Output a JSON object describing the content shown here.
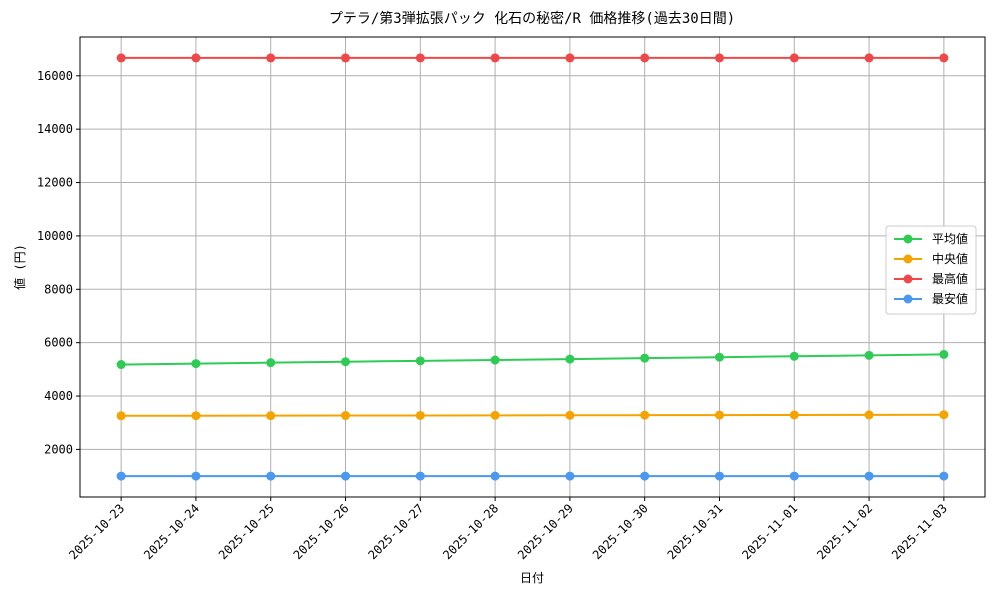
{
  "chart_data": {
    "type": "line",
    "title": "プテラ/第3弾拡張パック 化石の秘密/R 価格推移(過去30日間)",
    "x_label": "日付",
    "y_label": "値 (円)",
    "categories": [
      "2025-10-23",
      "2025-10-24",
      "2025-10-25",
      "2025-10-26",
      "2025-10-27",
      "2025-10-28",
      "2025-10-29",
      "2025-10-30",
      "2025-10-31",
      "2025-11-01",
      "2025-11-02",
      "2025-11-03"
    ],
    "series": [
      {
        "name": "平均値",
        "color": "#2ecc55",
        "values": [
          5180,
          5215,
          5250,
          5285,
          5320,
          5350,
          5385,
          5420,
          5455,
          5490,
          5525,
          5560
        ]
      },
      {
        "name": "中央値",
        "color": "#f5a300",
        "values": [
          3260,
          3263,
          3266,
          3270,
          3273,
          3276,
          3280,
          3283,
          3287,
          3290,
          3294,
          3300
        ]
      },
      {
        "name": "最高値",
        "color": "#f04848",
        "values": [
          16670,
          16670,
          16670,
          16670,
          16670,
          16670,
          16670,
          16670,
          16670,
          16670,
          16670,
          16670
        ]
      },
      {
        "name": "最安値",
        "color": "#4a98f0",
        "values": [
          1000,
          1000,
          1000,
          1000,
          1000,
          1000,
          1000,
          1000,
          1000,
          1000,
          1000,
          1000
        ]
      }
    ],
    "ylim": [
      217,
      17454
    ],
    "yticks": [
      2000,
      4000,
      6000,
      8000,
      10000,
      12000,
      14000,
      16000
    ],
    "grid": true,
    "legend": "right"
  }
}
